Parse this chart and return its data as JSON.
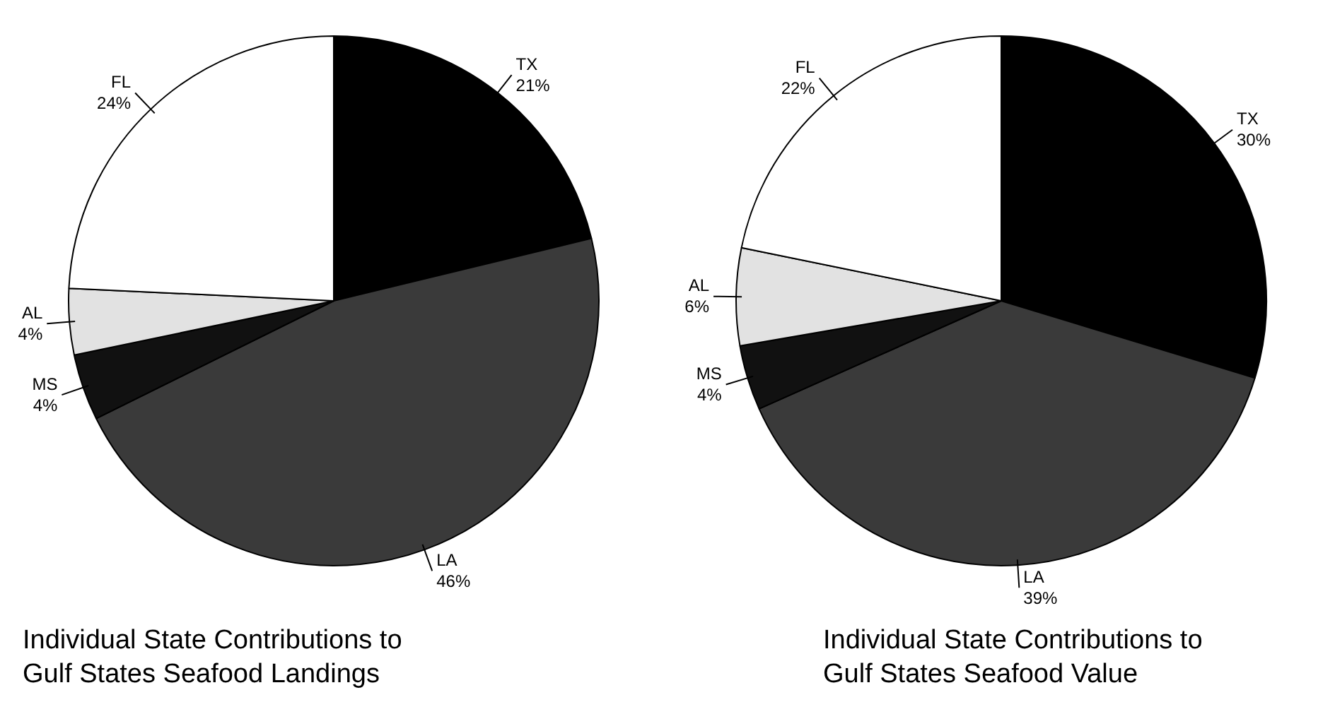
{
  "chart_data": [
    {
      "type": "pie",
      "title": "Individual State Contributions to Gulf States Seafood Landings",
      "categories": [
        "TX",
        "LA",
        "MS",
        "AL",
        "FL"
      ],
      "values": [
        21,
        46,
        4,
        4,
        24
      ],
      "value_labels": [
        "21%",
        "46%",
        "4%",
        "4%",
        "24%"
      ],
      "colors": [
        "#000000",
        "#3a3a3a",
        "#111111",
        "#e2e2e2",
        "#ffffff"
      ],
      "legend": false
    },
    {
      "type": "pie",
      "title": "Individual State Contributions to Gulf States Seafood Value",
      "categories": [
        "TX",
        "LA",
        "MS",
        "AL",
        "FL"
      ],
      "values": [
        30,
        39,
        4,
        6,
        22
      ],
      "value_labels": [
        "30%",
        "39%",
        "4%",
        "6%",
        "22%"
      ],
      "colors": [
        "#000000",
        "#3a3a3a",
        "#111111",
        "#e2e2e2",
        "#ffffff"
      ],
      "legend": false
    }
  ]
}
